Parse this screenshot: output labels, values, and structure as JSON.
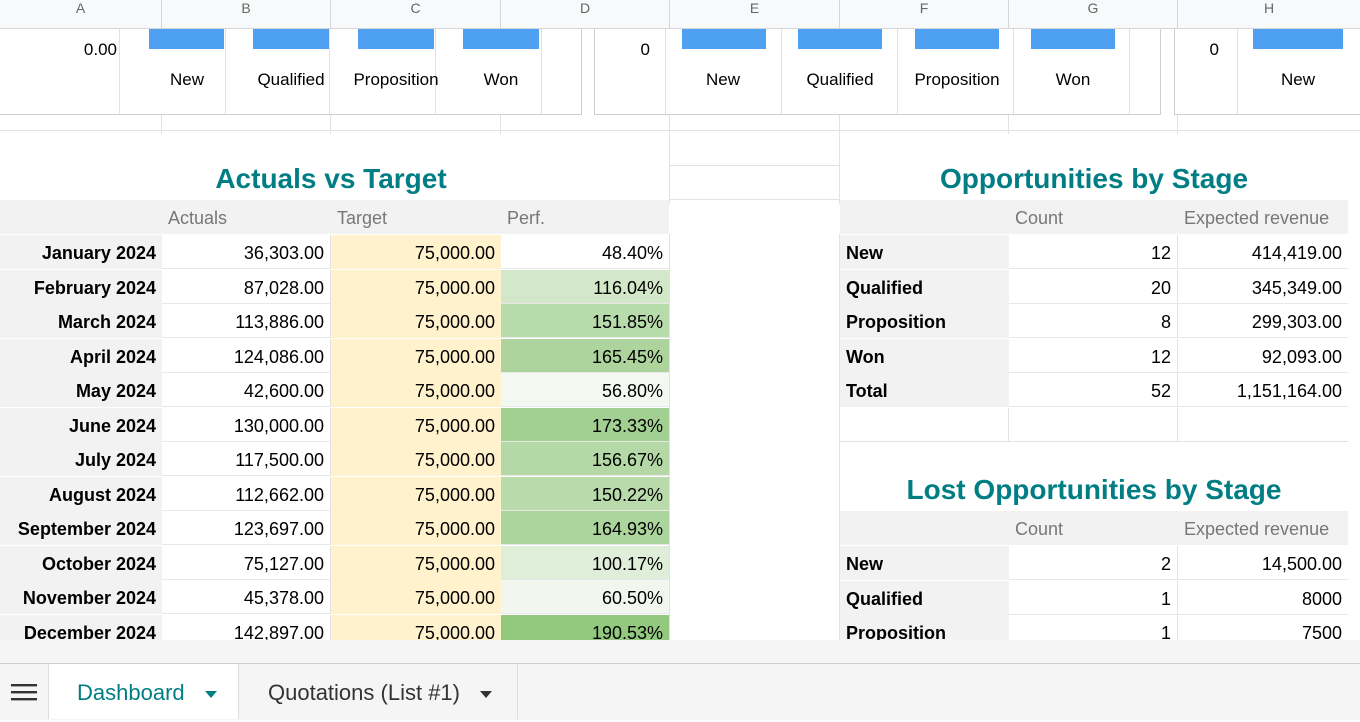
{
  "columns": [
    "A",
    "B",
    "C",
    "D",
    "E",
    "F",
    "G",
    "H"
  ],
  "chart1": {
    "ytick": "0.00",
    "categories": [
      "New",
      "Qualified",
      "Proposition",
      "Won"
    ]
  },
  "chart2": {
    "ytick": "0",
    "categories": [
      "New",
      "Qualified",
      "Proposition",
      "Won"
    ]
  },
  "chart3": {
    "ytick": "0",
    "categories": [
      "New"
    ]
  },
  "actuals": {
    "title": "Actuals vs Target",
    "headers": [
      "Actuals",
      "Target",
      "Perf."
    ],
    "rows": [
      {
        "month": "January 2024",
        "actual": "36,303.00",
        "target": "75,000.00",
        "perf": "48.40%"
      },
      {
        "month": "February 2024",
        "actual": "87,028.00",
        "target": "75,000.00",
        "perf": "116.04%"
      },
      {
        "month": "March 2024",
        "actual": "113,886.00",
        "target": "75,000.00",
        "perf": "151.85%"
      },
      {
        "month": "April 2024",
        "actual": "124,086.00",
        "target": "75,000.00",
        "perf": "165.45%"
      },
      {
        "month": "May 2024",
        "actual": "42,600.00",
        "target": "75,000.00",
        "perf": "56.80%"
      },
      {
        "month": "June 2024",
        "actual": "130,000.00",
        "target": "75,000.00",
        "perf": "173.33%"
      },
      {
        "month": "July 2024",
        "actual": "117,500.00",
        "target": "75,000.00",
        "perf": "156.67%"
      },
      {
        "month": "August 2024",
        "actual": "112,662.00",
        "target": "75,000.00",
        "perf": "150.22%"
      },
      {
        "month": "September 2024",
        "actual": "123,697.00",
        "target": "75,000.00",
        "perf": "164.93%"
      },
      {
        "month": "October 2024",
        "actual": "75,127.00",
        "target": "75,000.00",
        "perf": "100.17%"
      },
      {
        "month": "November 2024",
        "actual": "45,378.00",
        "target": "75,000.00",
        "perf": "60.50%"
      },
      {
        "month": "December 2024",
        "actual": "142,897.00",
        "target": "75,000.00",
        "perf": "190.53%"
      }
    ],
    "perf_colors": [
      "#ffffff",
      "#d3e8c9",
      "#b8dbab",
      "#acd49c",
      "#f3f8f1",
      "#a2d092",
      "#b4d9a6",
      "#b9dbac",
      "#acd59d",
      "#dfeed8",
      "#f1f7ee",
      "#93c97f"
    ]
  },
  "opps": {
    "title": "Opportunities by Stage",
    "headers": [
      "Count",
      "Expected revenue"
    ],
    "rows": [
      {
        "stage": "New",
        "count": "12",
        "rev": "414,419.00"
      },
      {
        "stage": "Qualified",
        "count": "20",
        "rev": "345,349.00"
      },
      {
        "stage": "Proposition",
        "count": "8",
        "rev": "299,303.00"
      },
      {
        "stage": "Won",
        "count": "12",
        "rev": "92,093.00"
      },
      {
        "stage": "Total",
        "count": "52",
        "rev": "1,151,164.00"
      }
    ]
  },
  "lost": {
    "title": "Lost Opportunities by Stage",
    "headers": [
      "Count",
      "Expected revenue"
    ],
    "rows": [
      {
        "stage": "New",
        "count": "2",
        "rev": "14,500.00"
      },
      {
        "stage": "Qualified",
        "count": "1",
        "rev": "8000"
      },
      {
        "stage": "Proposition",
        "count": "1",
        "rev": "7500"
      }
    ]
  },
  "tabs": {
    "active": "Dashboard",
    "other": "Quotations (List #1)"
  },
  "colors": {
    "accent": "#017e84",
    "bar": "#4ea1f1",
    "target": "#fff2cc"
  }
}
